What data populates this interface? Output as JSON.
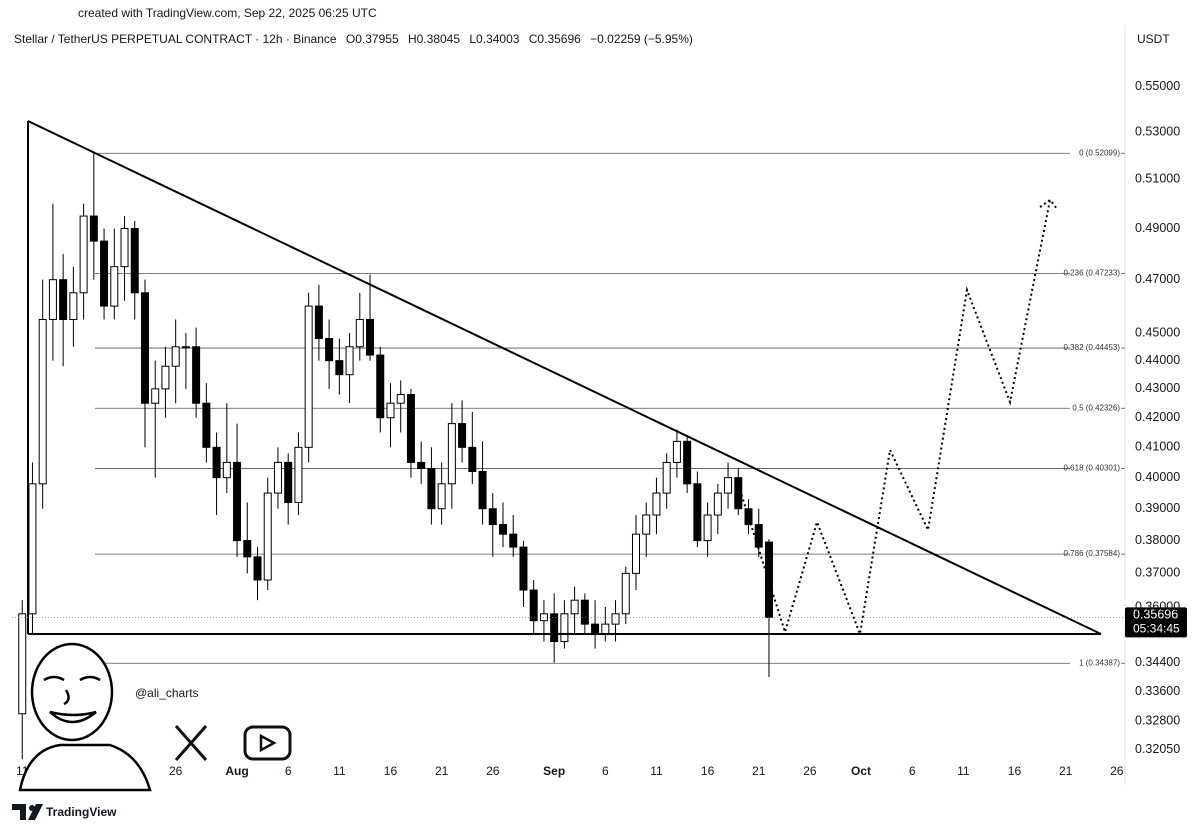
{
  "created_note": "created with TradingView.com, Sep 22, 2025 06:25 UTC",
  "symbol": "Stellar / TetherUS PERPETUAL CONTRACT · 12h · Binance",
  "ohlc": [
    "O0.37955",
    "H0.38045",
    "L0.34003",
    "C0.35696",
    "−0.02259 (−5.95%)"
  ],
  "handle": "@ali_charts",
  "brand": "TradingView",
  "chart_data": {
    "type": "candlestick",
    "currency": "USDT",
    "last_price": 0.35696,
    "countdown": "05:34:45",
    "log_scale": true,
    "grid": false,
    "up_color": "#ffffff",
    "down_color": "#000000",
    "ylim": [
      0.3114,
      0.5644
    ],
    "yticks": [
      {
        "value": 0.55,
        "label": "0.55000"
      },
      {
        "value": 0.53,
        "label": "0.53000"
      },
      {
        "value": 0.51,
        "label": "0.51000"
      },
      {
        "value": 0.49,
        "label": "0.49000"
      },
      {
        "value": 0.47,
        "label": "0.47000"
      },
      {
        "value": 0.45,
        "label": "0.45000"
      },
      {
        "value": 0.44,
        "label": "0.44000"
      },
      {
        "value": 0.43,
        "label": "0.43000"
      },
      {
        "value": 0.42,
        "label": "0.42000"
      },
      {
        "value": 0.41,
        "label": "0.41000"
      },
      {
        "value": 0.4,
        "label": "0.40000"
      },
      {
        "value": 0.39,
        "label": "0.39000"
      },
      {
        "value": 0.38,
        "label": "0.38000"
      },
      {
        "value": 0.37,
        "label": "0.37000"
      },
      {
        "value": 0.36,
        "label": "0.36000"
      },
      {
        "value": 0.344,
        "label": "0.34400"
      },
      {
        "value": 0.336,
        "label": "0.33600"
      },
      {
        "value": 0.328,
        "label": "0.32800"
      },
      {
        "value": 0.3205,
        "label": "0.32050"
      }
    ],
    "xlim": [
      "2025-07-10",
      "2025-10-27"
    ],
    "xticks": [
      {
        "value": "2025-07-11",
        "label": "11"
      },
      {
        "value": "2025-07-16",
        "label": "16"
      },
      {
        "value": "2025-07-21",
        "label": "21"
      },
      {
        "value": "2025-07-26",
        "label": "26"
      },
      {
        "value": "2025-08-01",
        "label": "Aug"
      },
      {
        "value": "2025-08-06",
        "label": "6"
      },
      {
        "value": "2025-08-11",
        "label": "11"
      },
      {
        "value": "2025-08-16",
        "label": "16"
      },
      {
        "value": "2025-08-21",
        "label": "21"
      },
      {
        "value": "2025-08-26",
        "label": "26"
      },
      {
        "value": "2025-09-01",
        "label": "Sep"
      },
      {
        "value": "2025-09-06",
        "label": "6"
      },
      {
        "value": "2025-09-11",
        "label": "11"
      },
      {
        "value": "2025-09-16",
        "label": "16"
      },
      {
        "value": "2025-09-21",
        "label": "21"
      },
      {
        "value": "2025-09-26",
        "label": "26"
      },
      {
        "value": "2025-10-01",
        "label": "Oct"
      },
      {
        "value": "2025-10-06",
        "label": "6"
      },
      {
        "value": "2025-10-11",
        "label": "11"
      },
      {
        "value": "2025-10-16",
        "label": "16"
      },
      {
        "value": "2025-10-21",
        "label": "21"
      },
      {
        "value": "2025-10-26",
        "label": "26"
      }
    ],
    "fib_levels": [
      {
        "value": 0.52099,
        "label": "0 (0.52099)"
      },
      {
        "value": 0.47233,
        "label": "0.236 (0.47233)"
      },
      {
        "value": 0.44453,
        "label": "0.382 (0.44453)"
      },
      {
        "value": 0.42326,
        "label": "0.5 (0.42326)"
      },
      {
        "value": 0.40301,
        "label": "0.618 (0.40301)"
      },
      {
        "value": 0.37584,
        "label": "0.786 (0.37584)"
      },
      {
        "value": 0.34387,
        "label": "1 (0.34387)"
      }
    ],
    "x": [
      "2025-07-11",
      "2025-07-12",
      "2025-07-13",
      "2025-07-14",
      "2025-07-15",
      "2025-07-16",
      "2025-07-17",
      "2025-07-18",
      "2025-07-19",
      "2025-07-20",
      "2025-07-21",
      "2025-07-22",
      "2025-07-23",
      "2025-07-24",
      "2025-07-25",
      "2025-07-26",
      "2025-07-27",
      "2025-07-28",
      "2025-07-29",
      "2025-07-30",
      "2025-07-31",
      "2025-08-01",
      "2025-08-02",
      "2025-08-03",
      "2025-08-04",
      "2025-08-05",
      "2025-08-06",
      "2025-08-07",
      "2025-08-08",
      "2025-08-09",
      "2025-08-10",
      "2025-08-11",
      "2025-08-12",
      "2025-08-13",
      "2025-08-14",
      "2025-08-15",
      "2025-08-16",
      "2025-08-17",
      "2025-08-18",
      "2025-08-19",
      "2025-08-20",
      "2025-08-21",
      "2025-08-22",
      "2025-08-23",
      "2025-08-24",
      "2025-08-25",
      "2025-08-26",
      "2025-08-27",
      "2025-08-28",
      "2025-08-29",
      "2025-08-30",
      "2025-08-31",
      "2025-09-01",
      "2025-09-02",
      "2025-09-03",
      "2025-09-04",
      "2025-09-05",
      "2025-09-06",
      "2025-09-07",
      "2025-09-08",
      "2025-09-09",
      "2025-09-10",
      "2025-09-11",
      "2025-09-12",
      "2025-09-13",
      "2025-09-14",
      "2025-09-15",
      "2025-09-16",
      "2025-09-17",
      "2025-09-18",
      "2025-09-19",
      "2025-09-20",
      "2025-09-21",
      "2025-09-22"
    ],
    "open": [
      0.33,
      0.358,
      0.398,
      0.455,
      0.47,
      0.455,
      0.465,
      0.495,
      0.485,
      0.46,
      0.475,
      0.49,
      0.465,
      0.425,
      0.43,
      0.438,
      0.445,
      0.445,
      0.425,
      0.41,
      0.4,
      0.405,
      0.38,
      0.375,
      0.368,
      0.395,
      0.405,
      0.392,
      0.41,
      0.46,
      0.448,
      0.44,
      0.435,
      0.445,
      0.455,
      0.442,
      0.42,
      0.425,
      0.428,
      0.405,
      0.403,
      0.39,
      0.398,
      0.418,
      0.41,
      0.402,
      0.39,
      0.385,
      0.382,
      0.378,
      0.365,
      0.356,
      0.358,
      0.35,
      0.358,
      0.362,
      0.355,
      0.352,
      0.355,
      0.358,
      0.37,
      0.382,
      0.388,
      0.395,
      0.405,
      0.412,
      0.398,
      0.38,
      0.388,
      0.395,
      0.4,
      0.39,
      0.385,
      0.37955
    ],
    "high": [
      0.362,
      0.405,
      0.47,
      0.5,
      0.48,
      0.475,
      0.5,
      0.521,
      0.49,
      0.49,
      0.495,
      0.493,
      0.47,
      0.44,
      0.445,
      0.455,
      0.45,
      0.452,
      0.432,
      0.415,
      0.425,
      0.418,
      0.392,
      0.378,
      0.4,
      0.41,
      0.408,
      0.415,
      0.465,
      0.468,
      0.455,
      0.448,
      0.45,
      0.465,
      0.472,
      0.445,
      0.432,
      0.433,
      0.43,
      0.412,
      0.41,
      0.405,
      0.425,
      0.426,
      0.422,
      0.412,
      0.395,
      0.392,
      0.388,
      0.38,
      0.368,
      0.362,
      0.364,
      0.362,
      0.366,
      0.364,
      0.362,
      0.36,
      0.362,
      0.372,
      0.388,
      0.392,
      0.4,
      0.408,
      0.416,
      0.414,
      0.402,
      0.392,
      0.398,
      0.405,
      0.403,
      0.393,
      0.39,
      0.38045
    ],
    "low": [
      0.318,
      0.352,
      0.39,
      0.44,
      0.438,
      0.445,
      0.455,
      0.47,
      0.455,
      0.455,
      0.462,
      0.455,
      0.41,
      0.4,
      0.42,
      0.425,
      0.43,
      0.42,
      0.405,
      0.388,
      0.395,
      0.375,
      0.37,
      0.362,
      0.365,
      0.39,
      0.385,
      0.388,
      0.405,
      0.44,
      0.43,
      0.428,
      0.425,
      0.44,
      0.44,
      0.415,
      0.41,
      0.415,
      0.4,
      0.398,
      0.385,
      0.385,
      0.39,
      0.405,
      0.398,
      0.385,
      0.375,
      0.378,
      0.375,
      0.36,
      0.352,
      0.35,
      0.344,
      0.348,
      0.352,
      0.352,
      0.348,
      0.35,
      0.35,
      0.355,
      0.365,
      0.375,
      0.382,
      0.39,
      0.4,
      0.395,
      0.378,
      0.375,
      0.382,
      0.39,
      0.388,
      0.382,
      0.375,
      0.34003
    ],
    "close": [
      0.358,
      0.398,
      0.455,
      0.47,
      0.455,
      0.465,
      0.495,
      0.485,
      0.46,
      0.475,
      0.49,
      0.465,
      0.425,
      0.43,
      0.438,
      0.445,
      0.445,
      0.425,
      0.41,
      0.4,
      0.405,
      0.38,
      0.375,
      0.368,
      0.395,
      0.405,
      0.392,
      0.41,
      0.46,
      0.448,
      0.44,
      0.435,
      0.445,
      0.455,
      0.442,
      0.42,
      0.425,
      0.428,
      0.405,
      0.403,
      0.39,
      0.398,
      0.418,
      0.41,
      0.402,
      0.39,
      0.385,
      0.382,
      0.378,
      0.365,
      0.356,
      0.358,
      0.35,
      0.358,
      0.362,
      0.355,
      0.352,
      0.355,
      0.358,
      0.37,
      0.382,
      0.388,
      0.395,
      0.405,
      0.412,
      0.398,
      0.38,
      0.388,
      0.395,
      0.4,
      0.39,
      0.385,
      0.378,
      0.35696
    ]
  }
}
